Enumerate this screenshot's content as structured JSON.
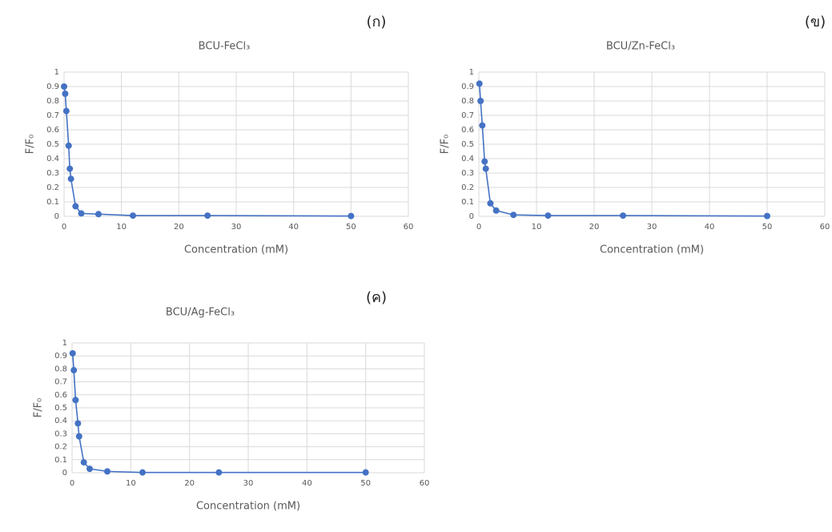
{
  "chart_data": [
    {
      "type": "line",
      "panel_label": "(ก)",
      "title": "BCU-FeCl₃",
      "xlabel": "Concentration (mM)",
      "ylabel": "F/F₀",
      "x": [
        0,
        0.2,
        0.4,
        0.8,
        1,
        1.2,
        2,
        3,
        6,
        12,
        25,
        50
      ],
      "values": [
        0.9,
        0.85,
        0.73,
        0.49,
        0.33,
        0.26,
        0.07,
        0.02,
        0.015,
        0.005,
        0.005,
        0.002
      ],
      "color": "#4472c4",
      "xlim": [
        0,
        60
      ],
      "xticks": [
        0,
        10,
        20,
        30,
        40,
        50,
        60
      ],
      "ylim": [
        0,
        1
      ],
      "yticks": [
        0,
        0.1,
        0.2,
        0.3,
        0.4,
        0.5,
        0.6,
        0.7,
        0.8,
        0.9,
        1
      ],
      "grid": true
    },
    {
      "type": "line",
      "panel_label": "(ข)",
      "title": "BCU/Zn-FeCl₃",
      "xlabel": "Concentration (mM)",
      "ylabel": "F/F₀",
      "x": [
        0.1,
        0.3,
        0.6,
        1,
        1.2,
        2,
        3,
        6,
        12,
        25,
        50
      ],
      "values": [
        0.92,
        0.8,
        0.63,
        0.38,
        0.33,
        0.09,
        0.04,
        0.01,
        0.005,
        0.005,
        0.002
      ],
      "color": "#4472c4",
      "xlim": [
        0,
        60
      ],
      "xticks": [
        0,
        10,
        20,
        30,
        40,
        50,
        60
      ],
      "ylim": [
        0,
        1
      ],
      "yticks": [
        0,
        0.1,
        0.2,
        0.3,
        0.4,
        0.5,
        0.6,
        0.7,
        0.8,
        0.9,
        1
      ],
      "grid": true
    },
    {
      "type": "line",
      "panel_label": "(ค)",
      "title": "BCU/Ag-FeCl₃",
      "xlabel": "Concentration (mM)",
      "ylabel": "F/F₀",
      "x": [
        0.1,
        0.3,
        0.6,
        1,
        1.2,
        2,
        3,
        6,
        12,
        25,
        50
      ],
      "values": [
        0.92,
        0.79,
        0.56,
        0.38,
        0.28,
        0.08,
        0.03,
        0.01,
        0.002,
        0.002,
        0.002
      ],
      "color": "#4472c4",
      "xlim": [
        0,
        60
      ],
      "xticks": [
        0,
        10,
        20,
        30,
        40,
        50,
        60
      ],
      "ylim": [
        0,
        1
      ],
      "yticks": [
        0,
        0.1,
        0.2,
        0.3,
        0.4,
        0.5,
        0.6,
        0.7,
        0.8,
        0.9,
        1
      ],
      "grid": true
    }
  ]
}
